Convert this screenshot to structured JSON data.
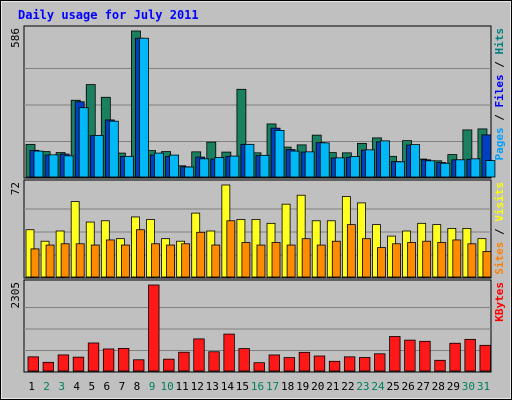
{
  "chart_data": {
    "type": "bar",
    "title": "Daily usage for July 2011",
    "days": [
      {
        "label": "1",
        "weekend": false
      },
      {
        "label": "2",
        "weekend": true
      },
      {
        "label": "3",
        "weekend": true
      },
      {
        "label": "4",
        "weekend": false
      },
      {
        "label": "5",
        "weekend": false
      },
      {
        "label": "6",
        "weekend": false
      },
      {
        "label": "7",
        "weekend": false
      },
      {
        "label": "8",
        "weekend": false
      },
      {
        "label": "9",
        "weekend": true
      },
      {
        "label": "10",
        "weekend": true
      },
      {
        "label": "11",
        "weekend": false
      },
      {
        "label": "12",
        "weekend": false
      },
      {
        "label": "13",
        "weekend": false
      },
      {
        "label": "14",
        "weekend": false
      },
      {
        "label": "15",
        "weekend": false
      },
      {
        "label": "16",
        "weekend": true
      },
      {
        "label": "17",
        "weekend": true
      },
      {
        "label": "18",
        "weekend": false
      },
      {
        "label": "19",
        "weekend": false
      },
      {
        "label": "20",
        "weekend": false
      },
      {
        "label": "21",
        "weekend": false
      },
      {
        "label": "22",
        "weekend": false
      },
      {
        "label": "23",
        "weekend": true
      },
      {
        "label": "24",
        "weekend": true
      },
      {
        "label": "25",
        "weekend": false
      },
      {
        "label": "26",
        "weekend": false
      },
      {
        "label": "27",
        "weekend": false
      },
      {
        "label": "28",
        "weekend": false
      },
      {
        "label": "29",
        "weekend": false
      },
      {
        "label": "30",
        "weekend": true
      },
      {
        "label": "31",
        "weekend": true
      }
    ],
    "panels": [
      {
        "id": "top",
        "max_label": "586",
        "ymax": 586,
        "legend": [
          "Pages",
          "Files",
          "Hits"
        ],
        "legend_colors": [
          "#00a0ff",
          "#0000ff",
          "#008080"
        ],
        "series": [
          {
            "name": "Hits",
            "color": "#1a8060",
            "values": [
              131,
              102,
              98,
              308,
              371,
              320,
              96,
              586,
              106,
              102,
              45,
              101,
              140,
              100,
              352,
              97,
              213,
              120,
              129,
              168,
              98,
              97,
              135,
              157,
              83,
              146,
              72,
              65,
              90,
              189,
              193
            ]
          },
          {
            "name": "Files",
            "color": "#0040c0",
            "values": [
              107,
              88,
              92,
              302,
              166,
              229,
              82,
              557,
              88,
              82,
              41,
              80,
              72,
              83,
              131,
              86,
              196,
              110,
              100,
              138,
              76,
              79,
              108,
              141,
              62,
              128,
              69,
              58,
              69,
              71,
              169
            ]
          },
          {
            "name": "Pages",
            "color": "#00b8f8",
            "values": [
              104,
              89,
              85,
              278,
              167,
              224,
              83,
              557,
              96,
              88,
              40,
              73,
              78,
              84,
              131,
              87,
              187,
              104,
              101,
              137,
              77,
              82,
              109,
              145,
              61,
              130,
              65,
              55,
              69,
              73,
              66
            ]
          }
        ]
      },
      {
        "id": "middle",
        "max_label": "72",
        "ymax": 72,
        "legend": [
          "Sites",
          "Visits"
        ],
        "legend_colors": [
          "#ff8000",
          "#ffff00"
        ],
        "series": [
          {
            "name": "Visits",
            "color": "#ffff20",
            "values": [
              37,
              28,
              36,
              59,
              43,
              44,
              30,
              47,
              45,
              30,
              28,
              50,
              36,
              72,
              45,
              45,
              42,
              57,
              64,
              44,
              44,
              63,
              58,
              41,
              32,
              36,
              42,
              41,
              38,
              38,
              30
            ]
          },
          {
            "name": "Sites",
            "color": "#ff8c00",
            "values": [
              22,
              25,
              26,
              26,
              25,
              29,
              25,
              37,
              26,
              25,
              26,
              35,
              25,
              44,
              27,
              25,
              27,
              25,
              30,
              25,
              28,
              41,
              30,
              23,
              26,
              27,
              28,
              27,
              29,
              26,
              20
            ]
          }
        ]
      },
      {
        "id": "bottom",
        "max_label": "2305",
        "ymax": 2305,
        "legend": [
          "KBytes"
        ],
        "legend_colors": [
          "#ff0000"
        ],
        "series": [
          {
            "name": "KBytes",
            "color": "#ff1818",
            "values": [
              380,
              233,
              431,
              371,
              751,
              591,
              606,
              301,
              2305,
              317,
              504,
              861,
              516,
              989,
              601,
              223,
              430,
              360,
              501,
              402,
              260,
              380,
              362,
              461,
              925,
              828,
              796,
              287,
              744,
              848,
              688
            ]
          }
        ]
      }
    ]
  }
}
